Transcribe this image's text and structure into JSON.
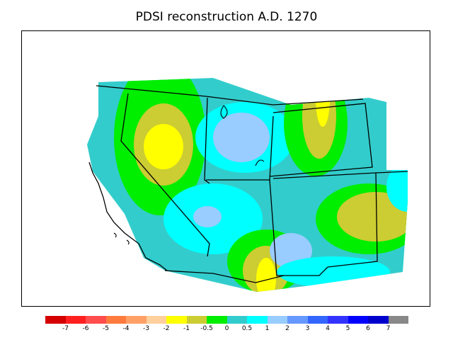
{
  "title": "PDSI reconstruction A.D. 1270",
  "legend": {
    "colors": [
      "#d40000",
      "#ff1f1f",
      "#ff4d4d",
      "#ff7a3d",
      "#ffa066",
      "#ffcf9c",
      "#ffff00",
      "#cccc33",
      "#00ee00",
      "#33cccc",
      "#00ffff",
      "#99ccff",
      "#6699ff",
      "#3366ff",
      "#3333ff",
      "#0000ff",
      "#0000cc",
      "#888888"
    ],
    "tick_labels": [
      "-7",
      "-6",
      "-5",
      "-4",
      "-3",
      "-2",
      "-1",
      "-0.5",
      "0",
      "0.5",
      "1",
      "2",
      "3",
      "4",
      "5",
      "6",
      "7"
    ]
  },
  "map": {
    "background_class": "#33cccc",
    "outside_color": "#ffffff"
  }
}
